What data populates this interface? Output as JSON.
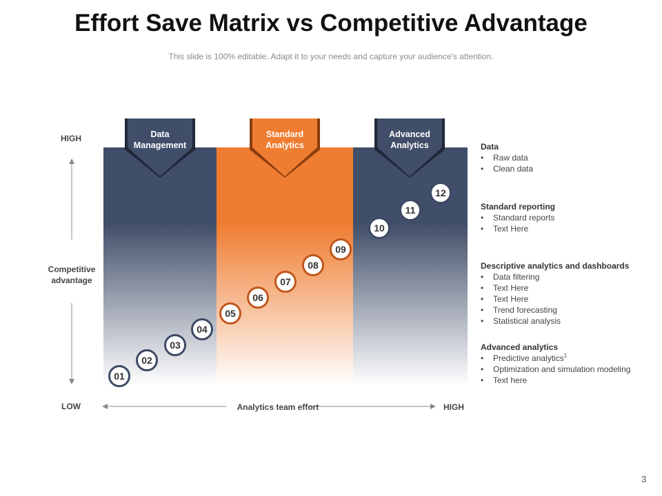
{
  "title": "Effort Save Matrix vs Competitive Advantage",
  "subtitle": "This slide is 100% editable. Adapt it to your needs and capture your audience's attention.",
  "columns": [
    {
      "line1": "Data",
      "line2": "Management",
      "color": "#414e69"
    },
    {
      "line1": "Standard",
      "line2": "Analytics",
      "color": "#ef7d31"
    },
    {
      "line1": "Advanced",
      "line2": "Analytics",
      "color": "#414e69"
    }
  ],
  "y_axis": {
    "high": "HIGH",
    "low": "LOW",
    "label_line1": "Competitive",
    "label_line2": "advantage"
  },
  "x_axis": {
    "label": "Analytics team effort",
    "high": "HIGH"
  },
  "steps": [
    "01",
    "02",
    "03",
    "04",
    "05",
    "06",
    "07",
    "08",
    "09",
    "10",
    "11",
    "12"
  ],
  "legend": [
    {
      "heading": "Data",
      "items": [
        "Raw data",
        "Clean data"
      ]
    },
    {
      "heading": "Standard reporting",
      "items": [
        "Standard reports",
        "Text Here"
      ]
    },
    {
      "heading": "Descriptive analytics and dashboards",
      "items": [
        "Data filtering",
        "Text Here",
        "Text Here",
        "Trend forecasting",
        "Statistical analysis"
      ]
    },
    {
      "heading": "Advanced analytics",
      "items": [
        "Predictive analytics",
        "Optimization and simulation modeling",
        "Text here"
      ],
      "footnote": "1"
    }
  ],
  "page_number": "3",
  "colors": {
    "navy": "#414e69",
    "orange": "#ef7d31",
    "circle_navy": "#3c4964",
    "circle_orange": "#c0561c"
  }
}
